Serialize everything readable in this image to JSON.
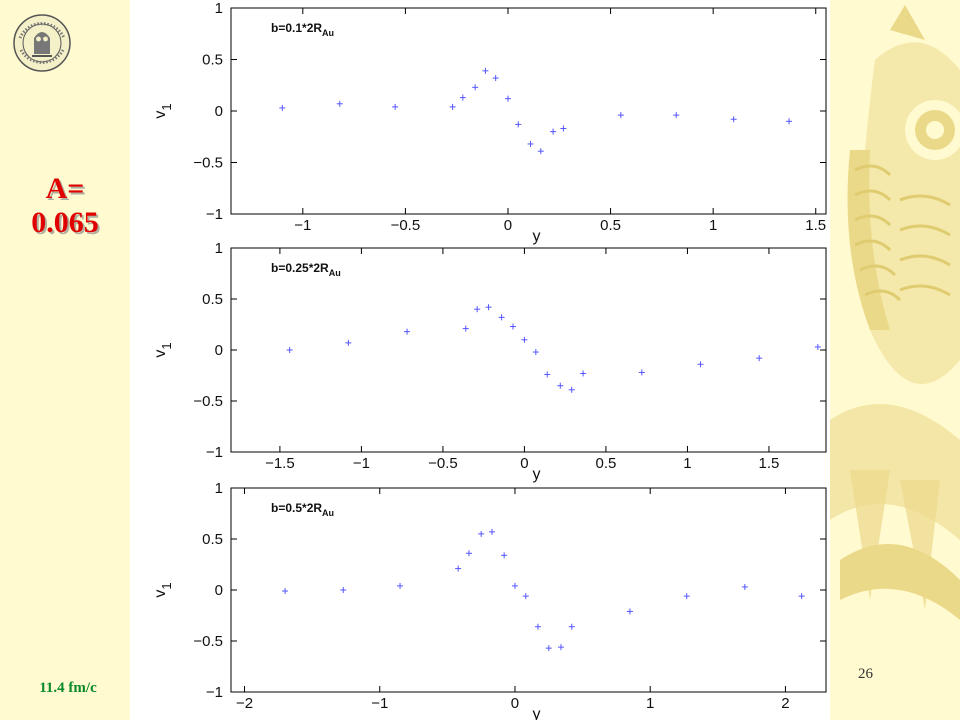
{
  "side_label": {
    "line1": "A=",
    "line2": "0.065"
  },
  "time_label": "11.4 fm/c",
  "page_number": "26",
  "colors": {
    "background": "#fffad0",
    "marker": "#5555ff",
    "title": "#e00000",
    "time": "#0a8a2a"
  },
  "chart_data": [
    {
      "type": "scatter",
      "annotation": {
        "main": "b=0.1*2R",
        "sub": "Au"
      },
      "xlabel": "y",
      "ylabel": "v",
      "ylabel_sub": "1",
      "xlim": [
        -1.35,
        1.55
      ],
      "ylim": [
        -1,
        1
      ],
      "xticks": [
        -1,
        -0.5,
        0,
        0.5,
        1,
        1.5
      ],
      "yticks": [
        -1,
        -0.5,
        0,
        0.5,
        1
      ],
      "grid": false,
      "marker": "+",
      "x": [
        -1.1,
        -0.82,
        -0.55,
        -0.27,
        -0.22,
        -0.16,
        -0.11,
        -0.06,
        0.0,
        0.05,
        0.11,
        0.16,
        0.22,
        0.27,
        0.55,
        0.82,
        1.1,
        1.37
      ],
      "y": [
        0.03,
        0.07,
        0.04,
        0.04,
        0.13,
        0.23,
        0.39,
        0.32,
        0.12,
        -0.13,
        -0.32,
        -0.39,
        -0.2,
        -0.17,
        -0.04,
        -0.04,
        -0.08,
        -0.1
      ]
    },
    {
      "type": "scatter",
      "annotation": {
        "main": "b=0.25*2R",
        "sub": "Au"
      },
      "xlabel": "y",
      "ylabel": "v",
      "ylabel_sub": "1",
      "xlim": [
        -1.8,
        1.85
      ],
      "ylim": [
        -1,
        1
      ],
      "xticks": [
        -1.5,
        -1,
        -0.5,
        0,
        0.5,
        1,
        1.5
      ],
      "yticks": [
        -1,
        -0.5,
        0,
        0.5,
        1
      ],
      "grid": false,
      "marker": "+",
      "x": [
        -1.44,
        -1.08,
        -0.72,
        -0.36,
        -0.29,
        -0.22,
        -0.14,
        -0.07,
        0.0,
        0.07,
        0.14,
        0.22,
        0.29,
        0.36,
        0.72,
        1.08,
        1.44,
        1.8
      ],
      "y": [
        0.0,
        0.07,
        0.18,
        0.21,
        0.4,
        0.42,
        0.32,
        0.23,
        0.1,
        -0.02,
        -0.24,
        -0.35,
        -0.39,
        -0.23,
        -0.22,
        -0.14,
        -0.08,
        0.03
      ]
    },
    {
      "type": "scatter",
      "annotation": {
        "main": "b=0.5*2R",
        "sub": "Au"
      },
      "xlabel": "y",
      "ylabel": "v",
      "ylabel_sub": "1",
      "xlim": [
        -2.1,
        2.3
      ],
      "ylim": [
        -1,
        1
      ],
      "xticks": [
        -2,
        -1,
        0,
        1,
        2
      ],
      "yticks": [
        -1,
        -0.5,
        0,
        0.5,
        1
      ],
      "grid": false,
      "marker": "+",
      "x": [
        -1.7,
        -1.27,
        -0.85,
        -0.42,
        -0.34,
        -0.25,
        -0.17,
        -0.08,
        0.0,
        0.08,
        0.17,
        0.25,
        0.34,
        0.42,
        0.85,
        1.27,
        1.7,
        2.12
      ],
      "y": [
        -0.01,
        0.0,
        0.04,
        0.21,
        0.36,
        0.55,
        0.57,
        0.34,
        0.04,
        -0.06,
        -0.36,
        -0.57,
        -0.56,
        -0.36,
        -0.21,
        -0.06,
        0.03,
        -0.06
      ]
    }
  ]
}
